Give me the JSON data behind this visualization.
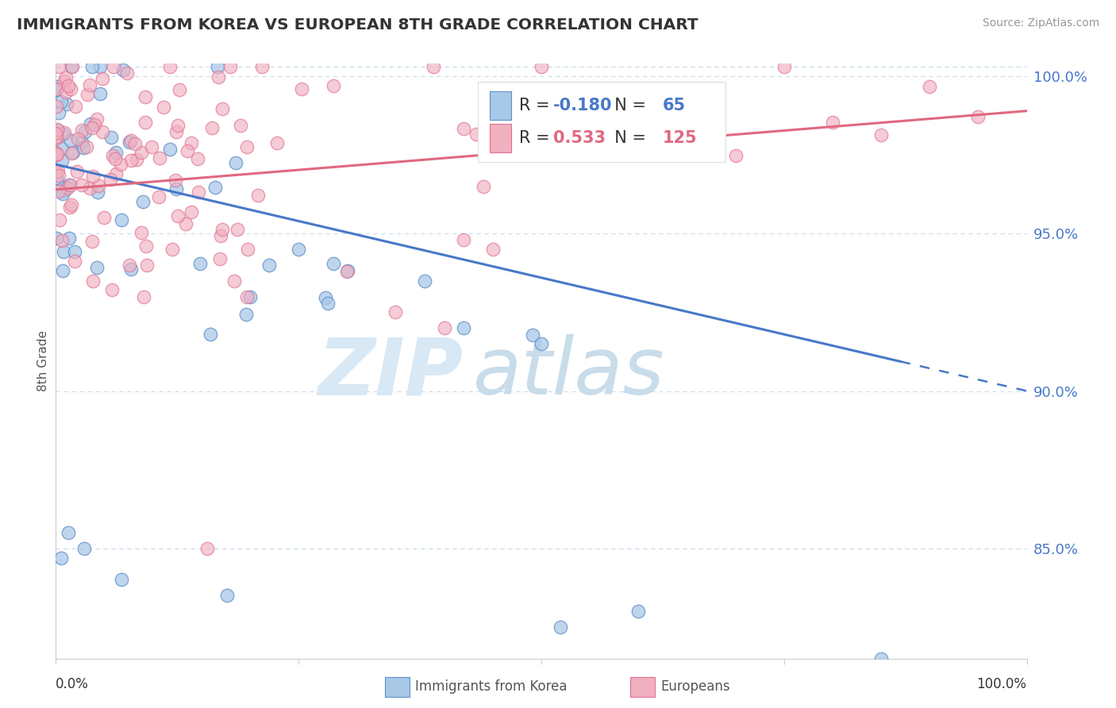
{
  "title": "IMMIGRANTS FROM KOREA VS EUROPEAN 8TH GRADE CORRELATION CHART",
  "source": "Source: ZipAtlas.com",
  "ylabel": "8th Grade",
  "x_min": 0.0,
  "x_max": 1.0,
  "y_min": 0.815,
  "y_max": 1.004,
  "korea_R": -0.18,
  "korea_N": 65,
  "europe_R": 0.533,
  "europe_N": 125,
  "korea_color": "#a8c8e8",
  "europe_color": "#f0b0c0",
  "korea_edge_color": "#6090c8",
  "europe_edge_color": "#e07090",
  "korea_line_color": "#4878c8",
  "europe_line_color": "#e06880",
  "grid_color": "#c8dff0",
  "y_ticks": [
    0.85,
    0.9,
    0.95,
    1.0
  ],
  "y_tick_labels": [
    "85.0%",
    "90.0%",
    "95.0%",
    "100.0%"
  ],
  "legend_korea_label": "Immigrants from Korea",
  "legend_europe_label": "Europeans",
  "watermark_zip_color": "#d8e8f4",
  "watermark_atlas_color": "#c8dcea"
}
